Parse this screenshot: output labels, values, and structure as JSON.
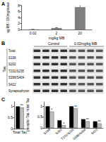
{
  "panel_labels": [
    "A",
    "B",
    "C"
  ],
  "chart_data": [
    {
      "type": "bar",
      "y_label": "ug MB / 100mg tissue",
      "x_label": "mg/kg MB",
      "categories": [
        "0.02",
        "2",
        "20"
      ],
      "values": [
        0.05,
        0.5,
        7.4
      ],
      "errors": [
        0.02,
        0.1,
        1.0
      ],
      "color": "#7f7f7f",
      "ylim": [
        0,
        8
      ],
      "yticks": [
        0,
        2,
        4,
        6,
        8
      ]
    },
    {
      "type": "bar",
      "categories": [
        "Total Tau"
      ],
      "series": [
        {
          "color": "#000000",
          "values": [
            1.0
          ]
        },
        {
          "color": "#bdbdbd",
          "values": [
            0.95
          ],
          "annotations": [
            "**"
          ]
        }
      ],
      "ylim": [
        0,
        1.2
      ],
      "yticks": [
        0,
        0.5,
        1
      ]
    },
    {
      "type": "bar",
      "y_label": "phospho-Tau / total Tau",
      "categories": [
        "S199",
        "S202",
        "T231/S235",
        "S396/S404",
        "S422"
      ],
      "series": [
        {
          "color": "#000000",
          "values": [
            1.0,
            0.35,
            1.0,
            0.4,
            0.3
          ]
        },
        {
          "color": "#bdbdbd",
          "values": [
            0.75,
            0.12,
            0.9,
            0.3,
            0.2
          ],
          "annotations": [
            "*",
            "*",
            "**",
            "**",
            "**"
          ]
        }
      ],
      "ylim": [
        0,
        1.2
      ],
      "yticks": [
        0,
        0.5,
        1
      ]
    }
  ],
  "blot": {
    "conditions": [
      "Control",
      "0.02mg/kg MB"
    ],
    "group_label": "Tau",
    "rows": [
      "Total",
      "S199",
      "S202",
      "T231/S235",
      "S396/S404",
      "S422",
      "Synaptophysin"
    ]
  }
}
